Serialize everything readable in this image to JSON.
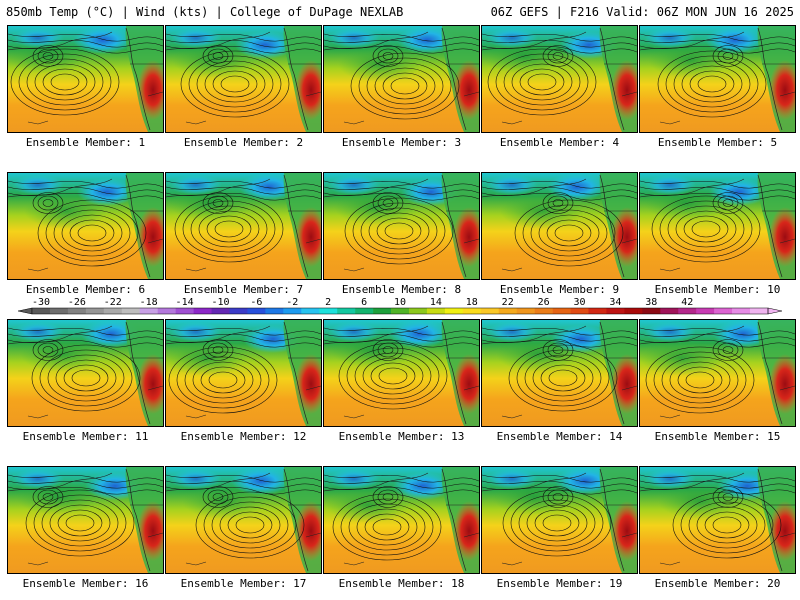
{
  "header": {
    "title_left": "850mb Temp (°C) | Wind (kts) | College of DuPage NEXLAB",
    "title_right": "06Z GEFS | F216 Valid: 06Z MON JUN 16 2025"
  },
  "members": [
    {
      "label": "Ensemble Member: 1"
    },
    {
      "label": "Ensemble Member: 2"
    },
    {
      "label": "Ensemble Member: 3"
    },
    {
      "label": "Ensemble Member: 4"
    },
    {
      "label": "Ensemble Member: 5"
    },
    {
      "label": "Ensemble Member: 6"
    },
    {
      "label": "Ensemble Member: 7"
    },
    {
      "label": "Ensemble Member: 8"
    },
    {
      "label": "Ensemble Member: 9"
    },
    {
      "label": "Ensemble Member: 10"
    },
    {
      "label": "Ensemble Member: 11"
    },
    {
      "label": "Ensemble Member: 12"
    },
    {
      "label": "Ensemble Member: 13"
    },
    {
      "label": "Ensemble Member: 14"
    },
    {
      "label": "Ensemble Member: 15"
    },
    {
      "label": "Ensemble Member: 16"
    },
    {
      "label": "Ensemble Member: 17"
    },
    {
      "label": "Ensemble Member: 18"
    },
    {
      "label": "Ensemble Member: 19"
    },
    {
      "label": "Ensemble Member: 20"
    }
  ],
  "colorbar": {
    "tick_labels": [
      "-30",
      "-26",
      "-22",
      "-18",
      "-14",
      "-10",
      "-6",
      "-2",
      "2",
      "6",
      "10",
      "14",
      "18",
      "22",
      "26",
      "30",
      "34",
      "38",
      "42"
    ],
    "colors": [
      "#5a5a5a",
      "#6e6e6e",
      "#828282",
      "#969696",
      "#aaaaaa",
      "#bebebe",
      "#c8a0e6",
      "#b478dc",
      "#a050d2",
      "#8c28c8",
      "#6428b4",
      "#3c3cc8",
      "#2850dc",
      "#1e78e6",
      "#1e9bf0",
      "#28c3f0",
      "#1ee1dc",
      "#14c8a0",
      "#14b46e",
      "#1ea03c",
      "#50b428",
      "#8cc81e",
      "#c8dc14",
      "#f0f014",
      "#fadc1e",
      "#fac828",
      "#f5aa1e",
      "#f0961e",
      "#eb7d19",
      "#e66414",
      "#e14b14",
      "#d22814",
      "#be1414",
      "#aa0a0a",
      "#8c0a14",
      "#a0145a",
      "#b4288c",
      "#c83cb4",
      "#dc64d2",
      "#e68ce6",
      "#f0b4f0"
    ]
  }
}
